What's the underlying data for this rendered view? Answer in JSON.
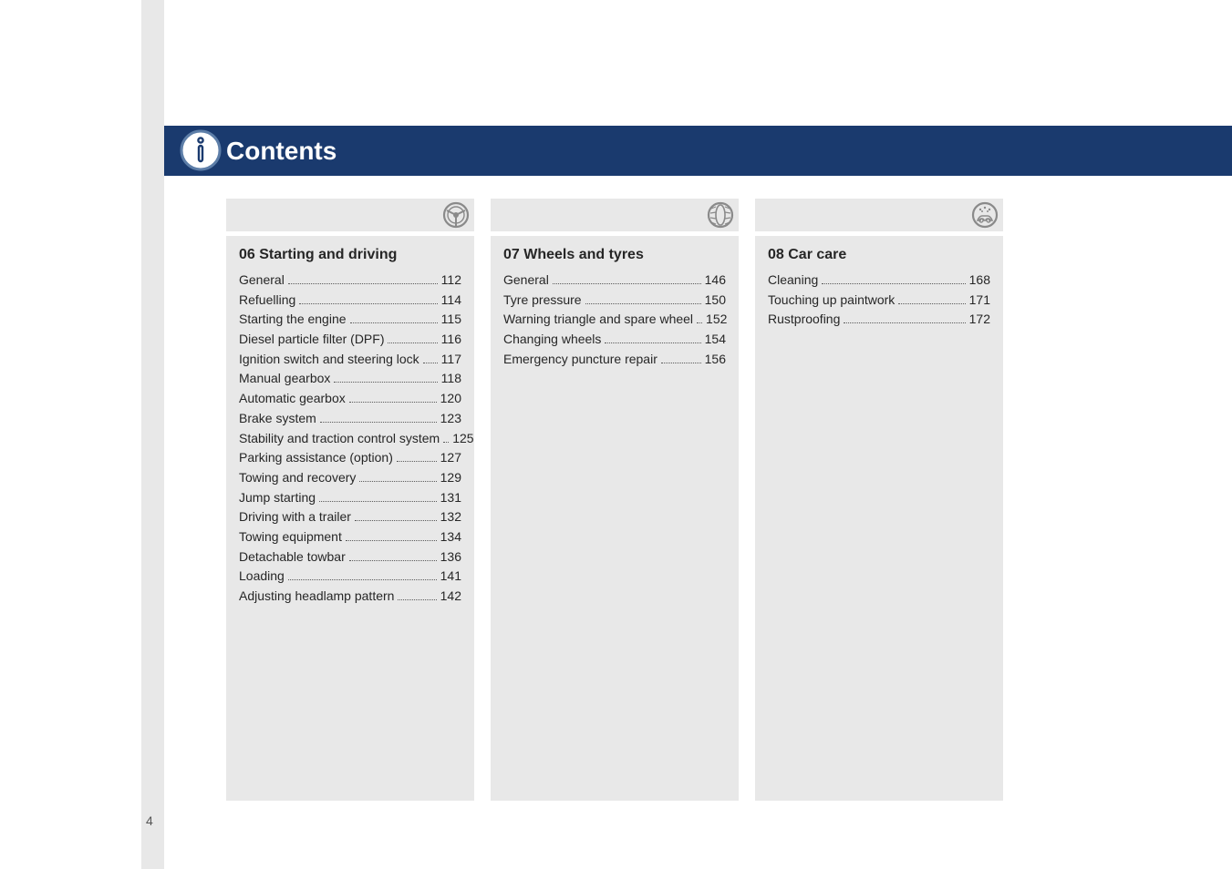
{
  "header": {
    "title": "Contents"
  },
  "page_number": "4",
  "ghost_numbers": {
    "c1": "06",
    "c2": "07",
    "c3": "08"
  },
  "icons": {
    "info_badge": {
      "ring": "#5d7ea8",
      "inner": "#ffffff",
      "glyph": "#1a3a6e",
      "size": 46
    },
    "col1": {
      "ring": "#8a8a8a",
      "fill": "#e8e8e8"
    },
    "col2": {
      "ring": "#8a8a8a",
      "fill": "#e8e8e8"
    },
    "col3": {
      "ring": "#8a8a8a",
      "fill": "#e8e8e8"
    }
  },
  "columns": [
    {
      "title": "06 Starting and driving",
      "items": [
        {
          "label": "General",
          "page": "112"
        },
        {
          "label": "Refuelling",
          "page": "114"
        },
        {
          "label": "Starting the engine",
          "page": "115"
        },
        {
          "label": "Diesel particle filter (DPF)",
          "page": "116"
        },
        {
          "label": "Ignition switch and steering lock",
          "page": "117"
        },
        {
          "label": "Manual gearbox",
          "page": "118"
        },
        {
          "label": "Automatic gearbox",
          "page": "120"
        },
        {
          "label": "Brake system",
          "page": "123"
        },
        {
          "label": "Stability and traction control system",
          "page": "125"
        },
        {
          "label": "Parking assistance (option)",
          "page": "127"
        },
        {
          "label": "Towing and recovery",
          "page": "129"
        },
        {
          "label": "Jump starting",
          "page": "131"
        },
        {
          "label": "Driving with a trailer",
          "page": "132"
        },
        {
          "label": "Towing equipment",
          "page": "134"
        },
        {
          "label": "Detachable towbar",
          "page": "136"
        },
        {
          "label": "Loading",
          "page": "141"
        },
        {
          "label": "Adjusting headlamp pattern",
          "page": "142"
        }
      ]
    },
    {
      "title": "07 Wheels and tyres",
      "items": [
        {
          "label": "General",
          "page": "146"
        },
        {
          "label": "Tyre pressure",
          "page": "150"
        },
        {
          "label": "Warning triangle and spare wheel",
          "page": "152"
        },
        {
          "label": "Changing wheels",
          "page": "154"
        },
        {
          "label": "Emergency puncture repair",
          "page": "156"
        }
      ]
    },
    {
      "title": "08 Car care",
      "items": [
        {
          "label": "Cleaning",
          "page": "168"
        },
        {
          "label": "Touching up paintwork",
          "page": "171"
        },
        {
          "label": "Rustproofing",
          "page": "172"
        }
      ]
    }
  ],
  "styling": {
    "header_bg": "#1a3a6e",
    "header_text": "#ffffff",
    "panel_bg": "#e8e8e8",
    "body_text": "#262626",
    "ghost_text": "#f2f2f2",
    "dot_color": "#5a5a5a",
    "page_bg": "#ffffff",
    "title_fontsize_pt": 21,
    "chapter_title_fontsize_pt": 12,
    "row_fontsize_pt": 10.5
  }
}
